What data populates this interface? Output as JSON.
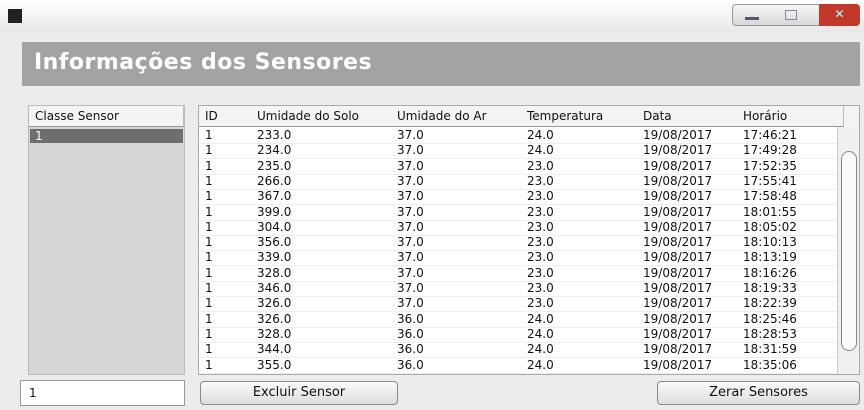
{
  "header": {
    "title": "Informações dos Sensores"
  },
  "sensor_list": {
    "header": "Classe Sensor",
    "items": [
      "1"
    ]
  },
  "table": {
    "columns": [
      "ID",
      "Umidade do Solo",
      "Umidade do Ar",
      "Temperatura",
      "Data",
      "Horário"
    ],
    "rows": [
      [
        "1",
        "233.0",
        "37.0",
        "24.0",
        "19/08/2017",
        "17:46:21"
      ],
      [
        "1",
        "234.0",
        "37.0",
        "24.0",
        "19/08/2017",
        "17:49:28"
      ],
      [
        "1",
        "235.0",
        "37.0",
        "23.0",
        "19/08/2017",
        "17:52:35"
      ],
      [
        "1",
        "266.0",
        "37.0",
        "23.0",
        "19/08/2017",
        "17:55:41"
      ],
      [
        "1",
        "367.0",
        "37.0",
        "23.0",
        "19/08/2017",
        "17:58:48"
      ],
      [
        "1",
        "399.0",
        "37.0",
        "23.0",
        "19/08/2017",
        "18:01:55"
      ],
      [
        "1",
        "304.0",
        "37.0",
        "23.0",
        "19/08/2017",
        "18:05:02"
      ],
      [
        "1",
        "356.0",
        "37.0",
        "23.0",
        "19/08/2017",
        "18:10:13"
      ],
      [
        "1",
        "339.0",
        "37.0",
        "23.0",
        "19/08/2017",
        "18:13:19"
      ],
      [
        "1",
        "328.0",
        "37.0",
        "23.0",
        "19/08/2017",
        "18:16:26"
      ],
      [
        "1",
        "346.0",
        "37.0",
        "23.0",
        "19/08/2017",
        "18:19:33"
      ],
      [
        "1",
        "326.0",
        "37.0",
        "23.0",
        "19/08/2017",
        "18:22:39"
      ],
      [
        "1",
        "326.0",
        "36.0",
        "24.0",
        "19/08/2017",
        "18:25:46"
      ],
      [
        "1",
        "328.0",
        "36.0",
        "24.0",
        "19/08/2017",
        "18:28:53"
      ],
      [
        "1",
        "344.0",
        "36.0",
        "24.0",
        "19/08/2017",
        "18:31:59"
      ],
      [
        "1",
        "355.0",
        "36.0",
        "24.0",
        "19/08/2017",
        "18:35:06"
      ]
    ]
  },
  "footer": {
    "input": "1",
    "delete_button": "Excluir Sensor",
    "reset_button": "Zerar Sensores"
  }
}
